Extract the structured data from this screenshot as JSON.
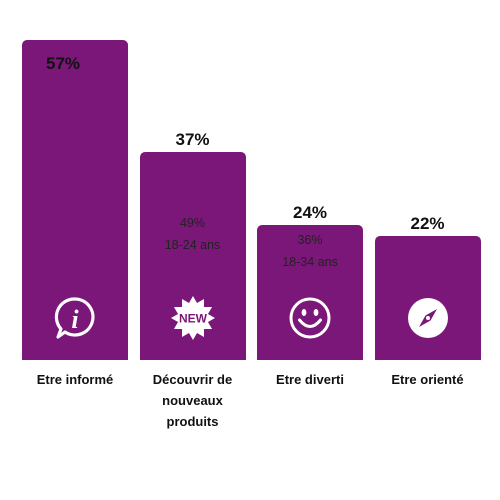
{
  "chart_data": {
    "type": "bar",
    "categories": [
      "Etre informé",
      "Découvrir de nouveaux produits",
      "Etre diverti",
      "Etre orienté"
    ],
    "values": [
      57,
      37,
      24,
      22
    ],
    "value_labels": [
      "57%",
      "37%",
      "24%",
      "22%"
    ],
    "category_lines": [
      [
        "Etre informé"
      ],
      [
        "Découvrir de",
        "nouveaux",
        "produits"
      ],
      [
        "Etre diverti"
      ],
      [
        "Etre orienté"
      ]
    ],
    "annotations": [
      null,
      {
        "value": "49%",
        "label": "18-24 ans"
      },
      {
        "value": "36%",
        "label": "18-34 ans"
      },
      null
    ],
    "icons": [
      "info-icon",
      "new-badge-icon",
      "smiley-icon",
      "compass-icon"
    ],
    "icon_texts": [
      "i",
      "NEW",
      "",
      ""
    ],
    "ylim": [
      0,
      57
    ],
    "grid": false,
    "legend": "none",
    "title": "",
    "xlabel": "",
    "ylabel": "",
    "colors": {
      "bar": "#7b1779",
      "icon": "#ffffff",
      "text": "#111111"
    }
  }
}
